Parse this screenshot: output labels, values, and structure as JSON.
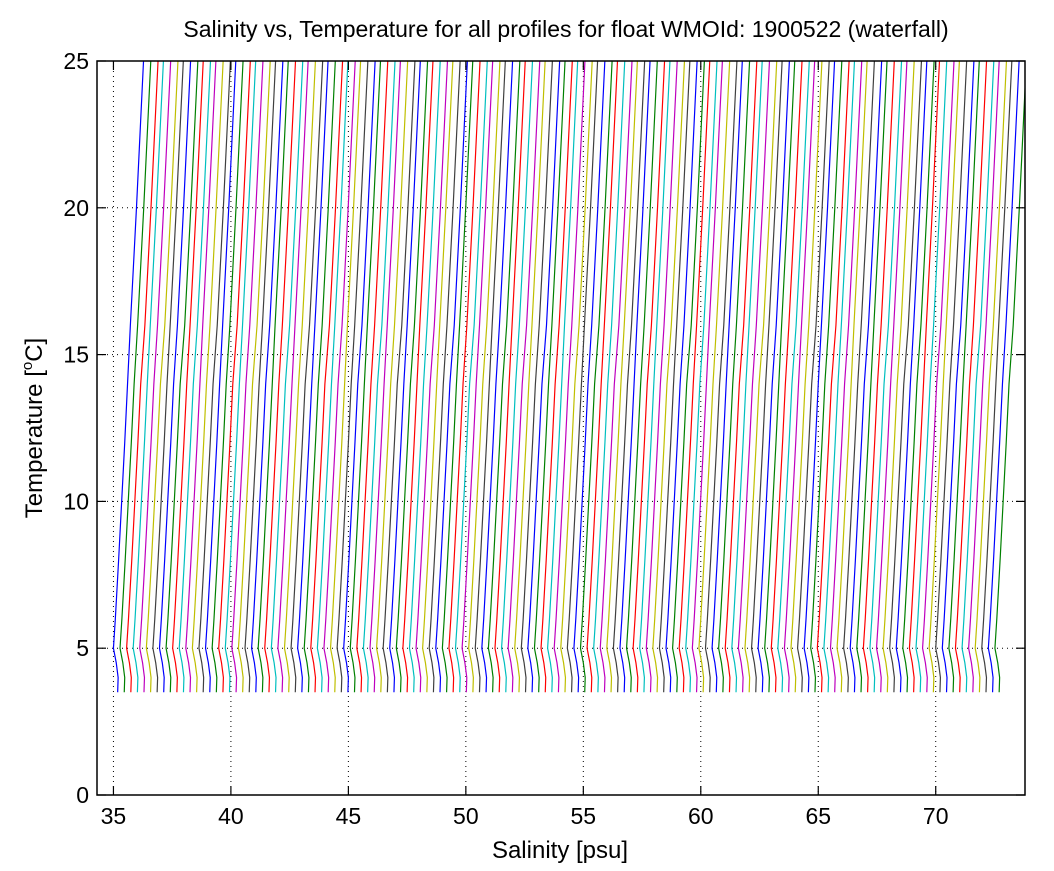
{
  "chart_data": {
    "type": "line",
    "title": "Salinity vs, Temperature for all profiles for float WMOId: 1900522 (waterfall)",
    "xlabel": "Salinity [psu]",
    "ylabel": {
      "prefix": "Temperature [",
      "superscript": "o",
      "suffix": "C]"
    },
    "xlim": [
      34.3,
      73.8
    ],
    "ylim": [
      0,
      25
    ],
    "xticks": [
      35,
      40,
      45,
      50,
      55,
      60,
      65,
      70
    ],
    "yticks": [
      0,
      5,
      10,
      15,
      20,
      25
    ],
    "grid": true,
    "waterfall": {
      "profile_count": 135,
      "first_offset_salinity": 35.0,
      "offset_step": 0.28
    },
    "profile_shape": {
      "temperature": [
        3.5,
        4.0,
        4.5,
        5.0,
        6.0,
        8.0,
        10.0,
        12.0,
        14.0,
        16.0,
        18.0,
        20.0,
        22.0,
        24.0,
        25.0
      ],
      "salinity_anomaly": [
        0.18,
        0.2,
        0.12,
        0.0,
        0.08,
        0.22,
        0.35,
        0.48,
        0.6,
        0.72,
        0.85,
        0.98,
        1.1,
        1.22,
        1.28
      ]
    },
    "colors": [
      "#0000ff",
      "#008000",
      "#ff0000",
      "#00bfbf",
      "#bf00bf",
      "#bfbf00",
      "#404040"
    ]
  }
}
